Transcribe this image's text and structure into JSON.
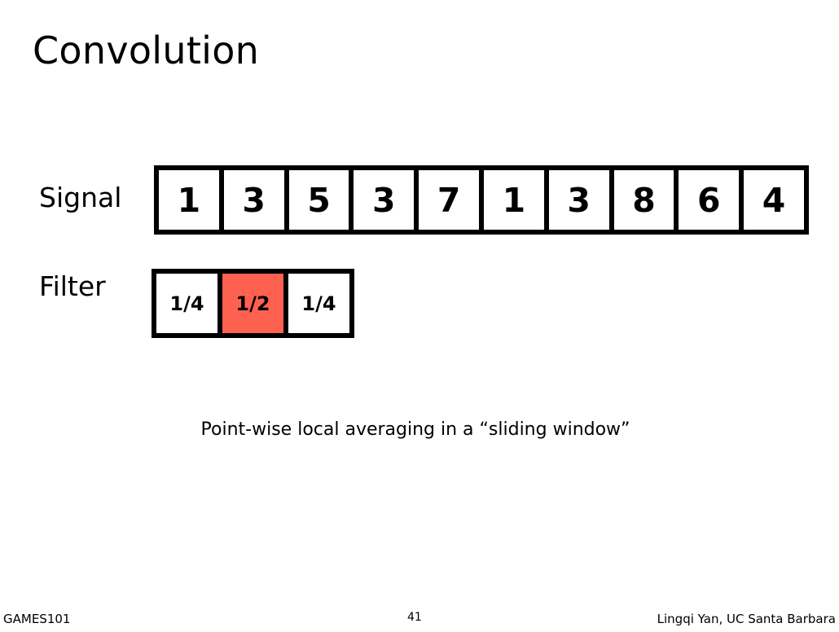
{
  "slide": {
    "title": "Convolution",
    "signal_label": "Signal",
    "filter_label": "Filter",
    "caption": "Point-wise local averaging in a “sliding window”"
  },
  "signal": {
    "values": [
      "1",
      "3",
      "5",
      "3",
      "7",
      "1",
      "3",
      "8",
      "6",
      "4"
    ]
  },
  "filter": {
    "values": [
      "1/4",
      "1/2",
      "1/4"
    ],
    "highlight_index": 1,
    "highlight_color": "#ff6150"
  },
  "footer": {
    "left": "GAMES101",
    "page_number": "41",
    "right": "Lingqi Yan, UC Santa Barbara"
  }
}
